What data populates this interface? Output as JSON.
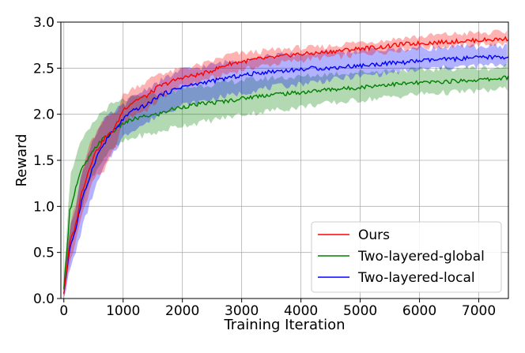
{
  "chart_data": {
    "type": "line",
    "title": "",
    "xlabel": "Training Iteration",
    "ylabel": "Reward",
    "xlim": [
      -50,
      7500
    ],
    "ylim": [
      0.0,
      3.0
    ],
    "x_ticks": [
      0,
      1000,
      2000,
      3000,
      4000,
      5000,
      6000,
      7000
    ],
    "y_ticks": [
      0.0,
      0.5,
      1.0,
      1.5,
      2.0,
      2.5,
      3.0
    ],
    "x_tick_labels": [
      "0",
      "1000",
      "2000",
      "3000",
      "4000",
      "5000",
      "6000",
      "7000"
    ],
    "y_tick_labels": [
      "0.0",
      "0.5",
      "1.0",
      "1.5",
      "2.0",
      "2.5",
      "3.0"
    ],
    "grid": true,
    "legend_position": "bottom-right",
    "shaded_band": true,
    "series": [
      {
        "name": "Ours",
        "color": "#ff0000",
        "x": [
          0,
          100,
          200,
          300,
          400,
          500,
          600,
          700,
          800,
          900,
          1000,
          1200,
          1400,
          1600,
          1800,
          2000,
          2200,
          2400,
          2600,
          2800,
          3000,
          3300,
          3600,
          3900,
          4200,
          4500,
          4800,
          5100,
          5400,
          5700,
          6000,
          6300,
          6600,
          6900,
          7200,
          7500
        ],
        "y": [
          0.05,
          0.6,
          0.8,
          1.15,
          1.35,
          1.55,
          1.65,
          1.75,
          1.8,
          1.9,
          2.05,
          2.15,
          2.2,
          2.3,
          2.35,
          2.4,
          2.42,
          2.45,
          2.5,
          2.55,
          2.57,
          2.6,
          2.62,
          2.65,
          2.66,
          2.68,
          2.7,
          2.72,
          2.73,
          2.76,
          2.77,
          2.78,
          2.79,
          2.8,
          2.81,
          2.82
        ],
        "band_low": [
          0.0,
          0.4,
          0.6,
          0.9,
          1.1,
          1.3,
          1.35,
          1.4,
          1.55,
          1.7,
          1.9,
          2.0,
          2.05,
          2.15,
          2.25,
          2.3,
          2.33,
          2.38,
          2.4,
          2.45,
          2.48,
          2.52,
          2.55,
          2.58,
          2.6,
          2.62,
          2.63,
          2.66,
          2.68,
          2.7,
          2.72,
          2.73,
          2.74,
          2.75,
          2.76,
          2.76
        ],
        "band_high": [
          0.1,
          0.8,
          1.0,
          1.35,
          1.6,
          1.75,
          1.85,
          1.95,
          2.0,
          2.05,
          2.2,
          2.3,
          2.35,
          2.45,
          2.45,
          2.5,
          2.52,
          2.55,
          2.6,
          2.65,
          2.66,
          2.68,
          2.7,
          2.72,
          2.72,
          2.74,
          2.77,
          2.79,
          2.8,
          2.83,
          2.84,
          2.86,
          2.87,
          2.88,
          2.88,
          2.9
        ]
      },
      {
        "name": "Two-layered-global",
        "color": "#008000",
        "x": [
          0,
          100,
          200,
          300,
          400,
          500,
          600,
          700,
          800,
          900,
          1000,
          1200,
          1400,
          1600,
          1800,
          2000,
          2200,
          2400,
          2600,
          2800,
          3000,
          3300,
          3600,
          3900,
          4200,
          4500,
          4800,
          5100,
          5400,
          5700,
          6000,
          6300,
          6600,
          6900,
          7200,
          7500
        ],
        "y": [
          0.1,
          0.95,
          1.2,
          1.4,
          1.5,
          1.6,
          1.7,
          1.75,
          1.8,
          1.85,
          1.9,
          1.95,
          1.98,
          2.0,
          2.05,
          2.08,
          2.1,
          2.12,
          2.13,
          2.15,
          2.17,
          2.2,
          2.22,
          2.23,
          2.25,
          2.27,
          2.28,
          2.3,
          2.32,
          2.33,
          2.34,
          2.35,
          2.36,
          2.37,
          2.38,
          2.4
        ],
        "band_low": [
          0.0,
          0.55,
          0.8,
          1.0,
          1.2,
          1.35,
          1.45,
          1.55,
          1.6,
          1.65,
          1.7,
          1.75,
          1.78,
          1.8,
          1.85,
          1.88,
          1.9,
          1.92,
          1.95,
          1.97,
          2.0,
          2.02,
          2.05,
          2.07,
          2.1,
          2.12,
          2.14,
          2.16,
          2.18,
          2.2,
          2.22,
          2.23,
          2.24,
          2.25,
          2.26,
          2.28
        ],
        "band_high": [
          0.2,
          1.3,
          1.55,
          1.7,
          1.8,
          1.9,
          2.0,
          2.05,
          2.1,
          2.12,
          2.15,
          2.18,
          2.2,
          2.22,
          2.25,
          2.28,
          2.3,
          2.32,
          2.33,
          2.35,
          2.37,
          2.38,
          2.4,
          2.4,
          2.42,
          2.44,
          2.45,
          2.46,
          2.47,
          2.48,
          2.48,
          2.49,
          2.5,
          2.5,
          2.5,
          2.52
        ]
      },
      {
        "name": "Two-layered-local",
        "color": "#0000ff",
        "x": [
          0,
          100,
          200,
          300,
          400,
          500,
          600,
          700,
          800,
          900,
          1000,
          1200,
          1400,
          1600,
          1800,
          2000,
          2200,
          2400,
          2600,
          2800,
          3000,
          3300,
          3600,
          3900,
          4200,
          4500,
          4800,
          5100,
          5400,
          5700,
          6000,
          6300,
          6600,
          6900,
          7200,
          7500
        ],
        "y": [
          0.05,
          0.55,
          0.75,
          1.05,
          1.25,
          1.45,
          1.6,
          1.7,
          1.8,
          1.85,
          1.95,
          2.05,
          2.1,
          2.2,
          2.25,
          2.3,
          2.32,
          2.35,
          2.37,
          2.4,
          2.42,
          2.45,
          2.47,
          2.48,
          2.5,
          2.5,
          2.52,
          2.53,
          2.55,
          2.56,
          2.58,
          2.59,
          2.6,
          2.61,
          2.62,
          2.62
        ],
        "band_low": [
          0.0,
          0.3,
          0.5,
          0.75,
          0.95,
          1.15,
          1.3,
          1.45,
          1.55,
          1.65,
          1.75,
          1.85,
          1.9,
          2.0,
          2.05,
          2.1,
          2.12,
          2.15,
          2.18,
          2.2,
          2.23,
          2.27,
          2.3,
          2.32,
          2.35,
          2.37,
          2.4,
          2.42,
          2.44,
          2.46,
          2.48,
          2.5,
          2.51,
          2.52,
          2.53,
          2.55
        ],
        "band_high": [
          0.1,
          0.8,
          1.0,
          1.35,
          1.55,
          1.75,
          1.85,
          1.95,
          2.0,
          2.05,
          2.1,
          2.2,
          2.28,
          2.35,
          2.42,
          2.48,
          2.5,
          2.52,
          2.55,
          2.57,
          2.6,
          2.62,
          2.64,
          2.65,
          2.66,
          2.67,
          2.68,
          2.7,
          2.7,
          2.71,
          2.72,
          2.72,
          2.73,
          2.73,
          2.74,
          2.74
        ]
      }
    ]
  }
}
